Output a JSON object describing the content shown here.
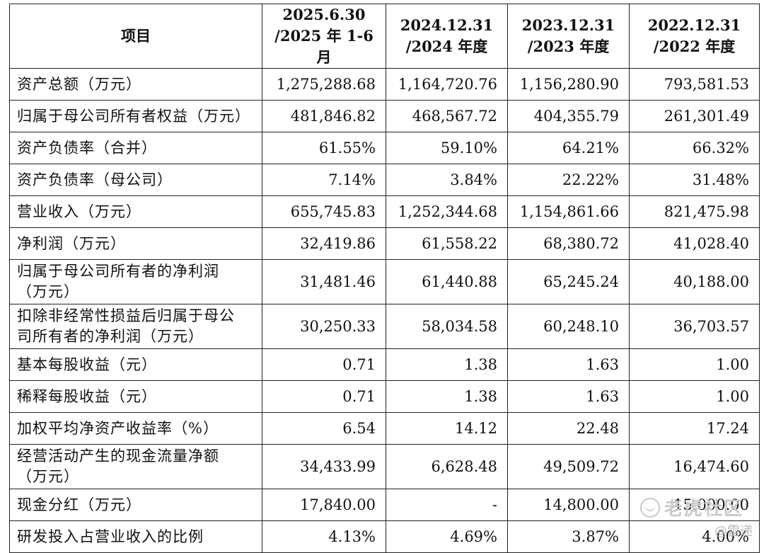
{
  "table": {
    "header": [
      {
        "line1": "项目",
        "line2": ""
      },
      {
        "line1": "2025.6.30",
        "line2": "/2025 年 1-6 月"
      },
      {
        "line1": "2024.12.31",
        "line2": "/2024 年度"
      },
      {
        "line1": "2023.12.31",
        "line2": "/2023 年度"
      },
      {
        "line1": "2022.12.31",
        "line2": "/2022 年度"
      }
    ],
    "rows": [
      {
        "label1": "资产总额（万元）",
        "label2": "",
        "values": [
          "1,275,288.68",
          "1,164,720.76",
          "1,156,280.90",
          "793,581.53"
        ]
      },
      {
        "label1": "归属于母公司所有者权益（万元）",
        "label2": "",
        "values": [
          "481,846.82",
          "468,567.72",
          "404,355.79",
          "261,301.49"
        ]
      },
      {
        "label1": "资产负债率（合并）",
        "label2": "",
        "values": [
          "61.55%",
          "59.10%",
          "64.21%",
          "66.32%"
        ]
      },
      {
        "label1": "资产负债率（母公司）",
        "label2": "",
        "values": [
          "7.14%",
          "3.84%",
          "22.22%",
          "31.48%"
        ]
      },
      {
        "label1": "营业收入（万元）",
        "label2": "",
        "values": [
          "655,745.83",
          "1,252,344.68",
          "1,154,861.66",
          "821,475.98"
        ]
      },
      {
        "label1": "净利润（万元）",
        "label2": "",
        "values": [
          "32,419.86",
          "61,558.22",
          "68,380.72",
          "41,028.40"
        ]
      },
      {
        "label1": "归属于母公司所有者的净利润",
        "label2": "（万元）",
        "values": [
          "31,481.46",
          "61,440.88",
          "65,245.24",
          "40,188.00"
        ]
      },
      {
        "label1": "扣除非经常性损益后归属于母公",
        "label2": "司所有者的净利润（万元）",
        "values": [
          "30,250.33",
          "58,034.58",
          "60,248.10",
          "36,703.57"
        ]
      },
      {
        "label1": "基本每股收益（元）",
        "label2": "",
        "values": [
          "0.71",
          "1.38",
          "1.63",
          "1.00"
        ]
      },
      {
        "label1": "稀释每股收益（元）",
        "label2": "",
        "values": [
          "0.71",
          "1.38",
          "1.63",
          "1.00"
        ]
      },
      {
        "label1": "加权平均净资产收益率（%）",
        "label2": "",
        "values": [
          "6.54",
          "14.12",
          "22.48",
          "17.24"
        ]
      },
      {
        "label1": "经营活动产生的现金流量净额",
        "label2": "（万元）",
        "values": [
          "34,433.99",
          "6,628.48",
          "49,509.72",
          "16,474.60"
        ]
      },
      {
        "label1": "现金分红（万元）",
        "label2": "",
        "values": [
          "17,840.00",
          "-",
          "14,800.00",
          "15,000.00"
        ]
      },
      {
        "label1": "研发投入占营业收入的比例",
        "label2": "",
        "values": [
          "4.13%",
          "4.69%",
          "3.87%",
          "4.00%"
        ]
      }
    ]
  },
  "watermark": {
    "main": "老虎社区",
    "sub": "@雷递",
    "icon": "tiger-logo-icon"
  }
}
